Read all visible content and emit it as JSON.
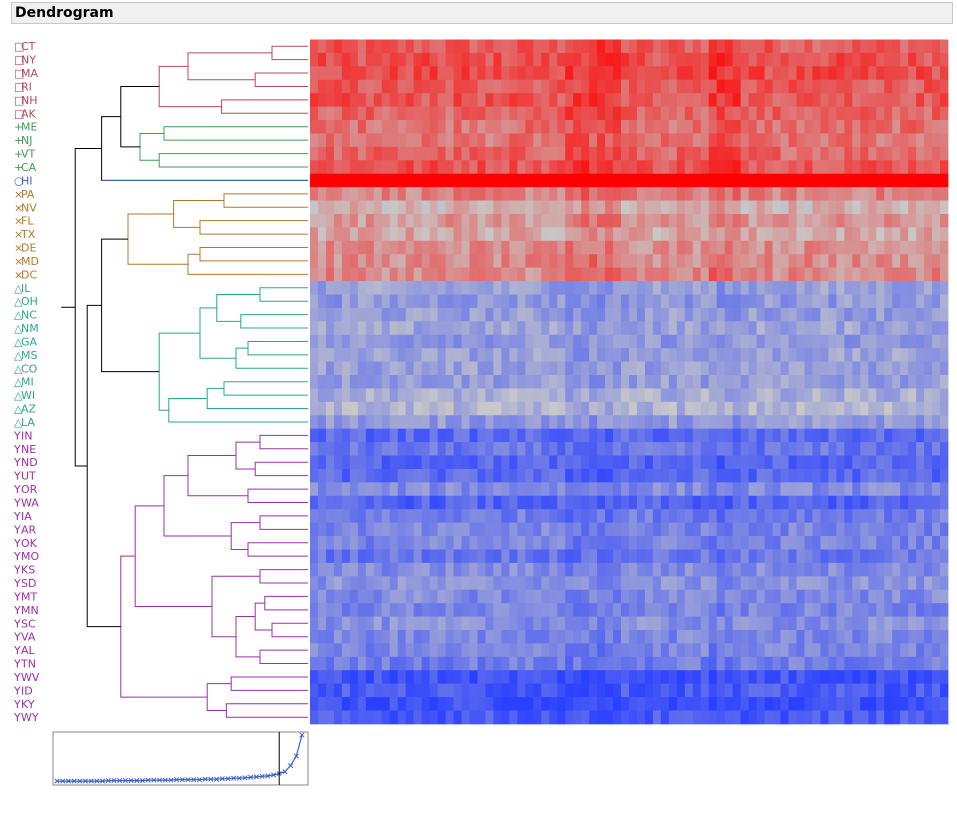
{
  "panel": {
    "title": "Dendrogram"
  },
  "colors": {
    "c1": "#b84a5a",
    "c2": "#3f9e54",
    "c3": "#3b63c9",
    "c4": "#b07a2a",
    "c5": "#2aa58f",
    "c6": "#9a2fa8",
    "root": "#000000",
    "high": "#ff0000",
    "mid": "#c9c9c9",
    "low": "#2a40ff"
  },
  "chart_data": {
    "type": "heatmap",
    "title": "Dendrogram",
    "rows": [
      {
        "label": "CT",
        "marker": "□",
        "cluster": "c1"
      },
      {
        "label": "NY",
        "marker": "□",
        "cluster": "c1"
      },
      {
        "label": "MA",
        "marker": "□",
        "cluster": "c1"
      },
      {
        "label": "RI",
        "marker": "□",
        "cluster": "c1"
      },
      {
        "label": "NH",
        "marker": "□",
        "cluster": "c1"
      },
      {
        "label": "AK",
        "marker": "□",
        "cluster": "c1"
      },
      {
        "label": "ME",
        "marker": "+",
        "cluster": "c2"
      },
      {
        "label": "NJ",
        "marker": "+",
        "cluster": "c2"
      },
      {
        "label": "VT",
        "marker": "+",
        "cluster": "c2"
      },
      {
        "label": "CA",
        "marker": "+",
        "cluster": "c2"
      },
      {
        "label": "HI",
        "marker": "○",
        "cluster": "c3"
      },
      {
        "label": "PA",
        "marker": "×",
        "cluster": "c4"
      },
      {
        "label": "NV",
        "marker": "×",
        "cluster": "c4"
      },
      {
        "label": "FL",
        "marker": "×",
        "cluster": "c4"
      },
      {
        "label": "TX",
        "marker": "×",
        "cluster": "c4"
      },
      {
        "label": "DE",
        "marker": "×",
        "cluster": "c4"
      },
      {
        "label": "MD",
        "marker": "×",
        "cluster": "c4"
      },
      {
        "label": "DC",
        "marker": "×",
        "cluster": "c4"
      },
      {
        "label": "IL",
        "marker": "△",
        "cluster": "c5"
      },
      {
        "label": "OH",
        "marker": "△",
        "cluster": "c5"
      },
      {
        "label": "NC",
        "marker": "△",
        "cluster": "c5"
      },
      {
        "label": "NM",
        "marker": "△",
        "cluster": "c5"
      },
      {
        "label": "GA",
        "marker": "△",
        "cluster": "c5"
      },
      {
        "label": "MS",
        "marker": "△",
        "cluster": "c5"
      },
      {
        "label": "CO",
        "marker": "△",
        "cluster": "c5"
      },
      {
        "label": "MI",
        "marker": "△",
        "cluster": "c5"
      },
      {
        "label": "WI",
        "marker": "△",
        "cluster": "c5"
      },
      {
        "label": "AZ",
        "marker": "△",
        "cluster": "c5"
      },
      {
        "label": "LA",
        "marker": "△",
        "cluster": "c5"
      },
      {
        "label": "IN",
        "marker": "Y",
        "cluster": "c6"
      },
      {
        "label": "NE",
        "marker": "Y",
        "cluster": "c6"
      },
      {
        "label": "ND",
        "marker": "Y",
        "cluster": "c6"
      },
      {
        "label": "UT",
        "marker": "Y",
        "cluster": "c6"
      },
      {
        "label": "OR",
        "marker": "Y",
        "cluster": "c6"
      },
      {
        "label": "WA",
        "marker": "Y",
        "cluster": "c6"
      },
      {
        "label": "IA",
        "marker": "Y",
        "cluster": "c6"
      },
      {
        "label": "AR",
        "marker": "Y",
        "cluster": "c6"
      },
      {
        "label": "OK",
        "marker": "Y",
        "cluster": "c6"
      },
      {
        "label": "MO",
        "marker": "Y",
        "cluster": "c6"
      },
      {
        "label": "KS",
        "marker": "Y",
        "cluster": "c6"
      },
      {
        "label": "SD",
        "marker": "Y",
        "cluster": "c6"
      },
      {
        "label": "MT",
        "marker": "Y",
        "cluster": "c6"
      },
      {
        "label": "MN",
        "marker": "Y",
        "cluster": "c6"
      },
      {
        "label": "SC",
        "marker": "Y",
        "cluster": "c6"
      },
      {
        "label": "VA",
        "marker": "Y",
        "cluster": "c6"
      },
      {
        "label": "AL",
        "marker": "Y",
        "cluster": "c6"
      },
      {
        "label": "TN",
        "marker": "Y",
        "cluster": "c6"
      },
      {
        "label": "WV",
        "marker": "Y",
        "cluster": "c6"
      },
      {
        "label": "ID",
        "marker": "Y",
        "cluster": "c6"
      },
      {
        "label": "KY",
        "marker": "Y",
        "cluster": "c6"
      },
      {
        "label": "WY",
        "marker": "Y",
        "cluster": "c6"
      }
    ],
    "row_level": [
      0.55,
      0.6,
      0.62,
      0.55,
      0.58,
      0.5,
      0.45,
      0.42,
      0.5,
      0.6,
      1.0,
      0.35,
      0.12,
      0.25,
      0.18,
      0.3,
      0.3,
      0.32,
      -0.3,
      -0.35,
      -0.32,
      -0.28,
      -0.35,
      -0.3,
      -0.3,
      -0.32,
      -0.2,
      -0.15,
      -0.35,
      -0.7,
      -0.62,
      -0.72,
      -0.7,
      -0.45,
      -0.75,
      -0.55,
      -0.5,
      -0.5,
      -0.6,
      -0.45,
      -0.4,
      -0.45,
      -0.5,
      -0.42,
      -0.48,
      -0.5,
      -0.55,
      -0.85,
      -0.8,
      -0.9,
      -0.8
    ],
    "column_count": 80,
    "column_shift": {
      "hot_columns": [
        [
          32,
          38
        ],
        [
          50,
          53
        ]
      ],
      "hot_amount": 0.15
    },
    "color_scale": {
      "min": -1,
      "max": 1,
      "low": "blue",
      "mid": "gray",
      "high": "red"
    },
    "tree": [
      [
        "CT",
        "NY",
        0.15
      ],
      [
        "MA",
        "RI",
        0.22
      ],
      [
        "NH",
        "AK",
        0.36
      ],
      [
        "CT+NY",
        "MA+RI",
        0.5
      ],
      [
        "MA+RI+CT+NY",
        "NH+AK",
        0.62
      ],
      [
        "ME",
        "NJ",
        0.6
      ],
      [
        "VT",
        "CA",
        0.62
      ],
      [
        "ME+NJ",
        "VT+CA",
        0.7
      ],
      [
        "c1",
        "c2",
        0.78
      ],
      [
        "c1c2",
        "HI",
        0.85
      ],
      [
        "PA",
        "NV",
        0.35
      ],
      [
        "FL",
        "TX",
        0.45
      ],
      [
        "PA+NV",
        "FL+TX",
        0.56
      ],
      [
        "DE",
        "MD",
        0.45
      ],
      [
        "DE+MD",
        "DC",
        0.5
      ],
      [
        "c4a",
        "c4b",
        0.75
      ],
      [
        "IL",
        "OH",
        0.2
      ],
      [
        "NC",
        "NM",
        0.28
      ],
      [
        "IL+OH",
        "NC+NM",
        0.38
      ],
      [
        "GA",
        "MS",
        0.25
      ],
      [
        "GA+MS",
        "CO",
        0.3
      ],
      [
        "c5a",
        "c5b",
        0.55
      ],
      [
        "MI",
        "WI",
        0.35
      ],
      [
        "MI+WI",
        "AZ",
        0.42
      ],
      [
        "c5c",
        "LA",
        0.58
      ],
      [
        "c5ab",
        "c5cd",
        0.62
      ],
      [
        "c4",
        "c5",
        0.85
      ],
      [
        "c6",
        "root",
        0.95
      ]
    ],
    "distance_plot": {
      "type": "line",
      "y": [
        0.02,
        0.02,
        0.02,
        0.02,
        0.02,
        0.02,
        0.02,
        0.02,
        0.02,
        0.03,
        0.03,
        0.03,
        0.03,
        0.03,
        0.03,
        0.03,
        0.04,
        0.04,
        0.04,
        0.04,
        0.04,
        0.05,
        0.05,
        0.05,
        0.05,
        0.05,
        0.06,
        0.06,
        0.06,
        0.07,
        0.07,
        0.08,
        0.08,
        0.09,
        0.1,
        0.11,
        0.12,
        0.13,
        0.15,
        0.18,
        0.22,
        0.35,
        0.55,
        1.0
      ],
      "cut_index": 39
    }
  }
}
